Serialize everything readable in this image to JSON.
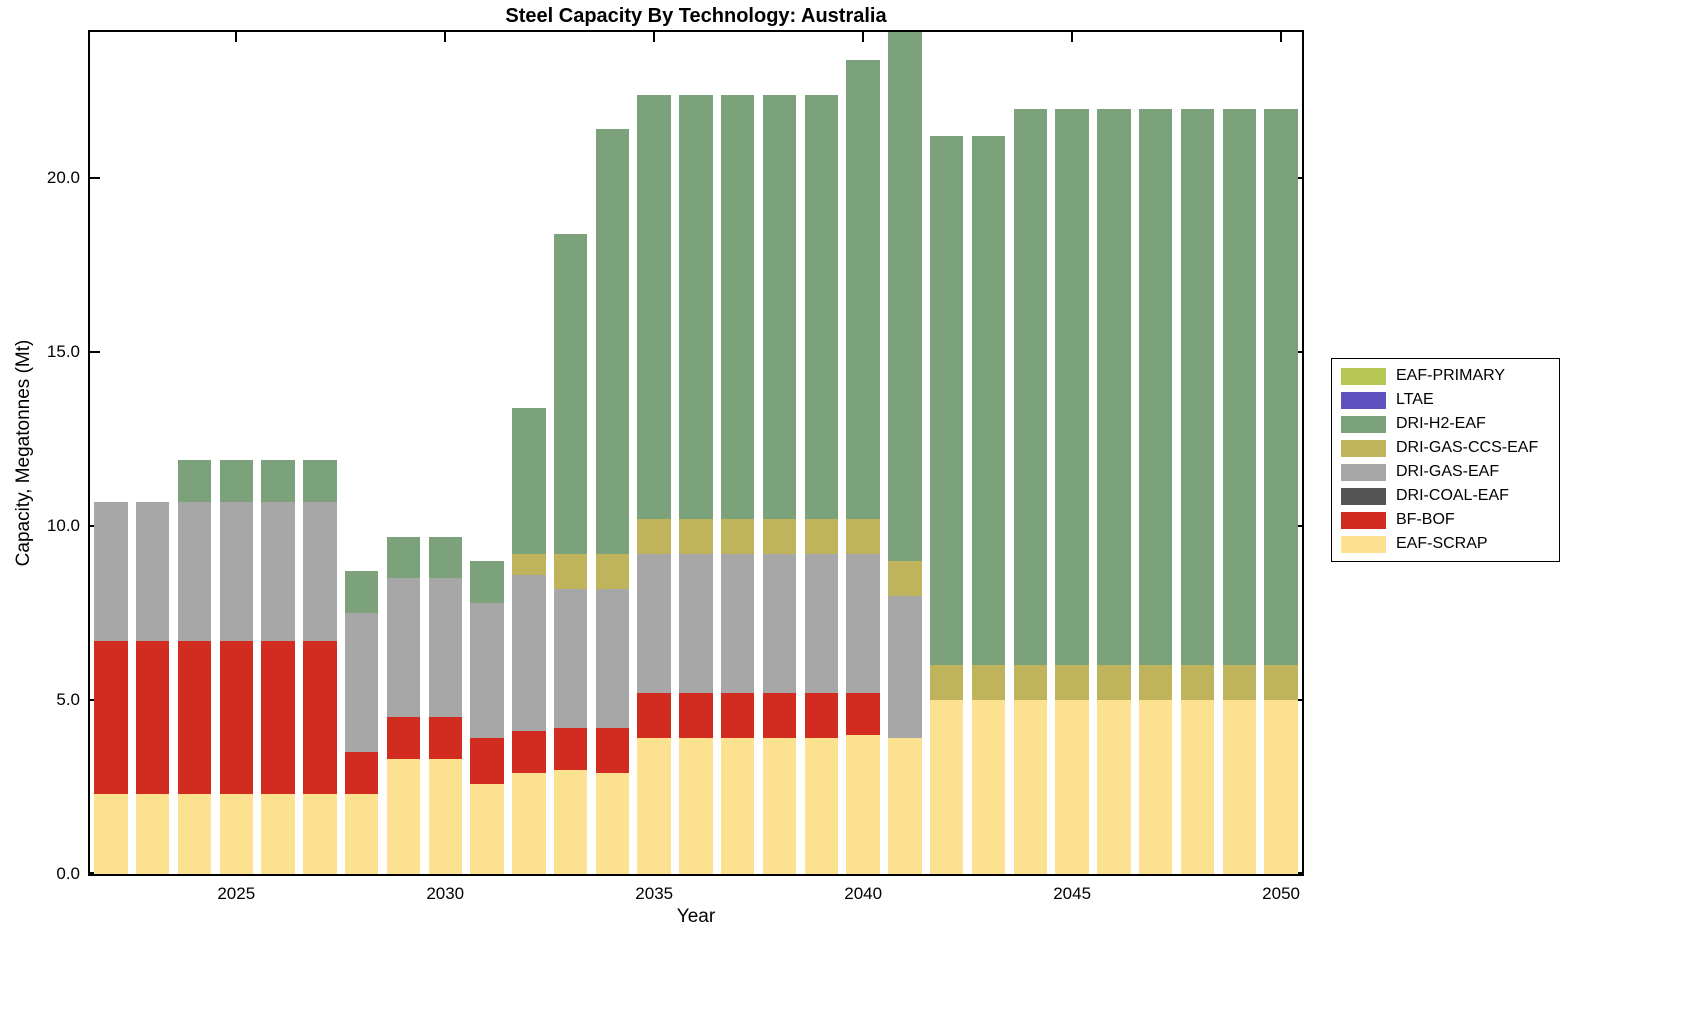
{
  "chart_data": {
    "type": "bar",
    "stacked": true,
    "title": "Steel Capacity By Technology: Australia",
    "xlabel": "Year",
    "ylabel": "Capacity, Megatonnes (Mt)",
    "grid": false,
    "legend_position": "right-outside",
    "ylim": [
      0,
      24.2
    ],
    "yticks": [
      0,
      5,
      10,
      15,
      20
    ],
    "ytick_labels": [
      "0.0",
      "5.0",
      "10.0",
      "15.0",
      "20.0"
    ],
    "xticks": [
      2025,
      2030,
      2035,
      2040,
      2045,
      2050
    ],
    "x": [
      2022,
      2023,
      2024,
      2025,
      2026,
      2027,
      2028,
      2029,
      2030,
      2031,
      2032,
      2033,
      2034,
      2035,
      2036,
      2037,
      2038,
      2039,
      2040,
      2041,
      2042,
      2043,
      2044,
      2045,
      2046,
      2047,
      2048,
      2049,
      2050
    ],
    "bar_width_fraction": 0.8,
    "legend_order_top_to_bottom": [
      "EAF-PRIMARY",
      "LTAE",
      "DRI-H2-EAF",
      "DRI-GAS-CCS-EAF",
      "DRI-GAS-EAF",
      "DRI-COAL-EAF",
      "BF-BOF",
      "EAF-SCRAP"
    ],
    "series": [
      {
        "name": "EAF-SCRAP",
        "color": "#FBE190",
        "values": [
          2.3,
          2.3,
          2.3,
          2.3,
          2.3,
          2.3,
          2.3,
          3.3,
          3.3,
          2.6,
          2.9,
          3.0,
          2.9,
          3.9,
          3.9,
          3.9,
          3.9,
          3.9,
          4.0,
          3.9,
          5.0,
          5.0,
          5.0,
          5.0,
          5.0,
          5.0,
          5.0,
          5.0,
          5.0
        ]
      },
      {
        "name": "BF-BOF",
        "color": "#D22B20",
        "values": [
          4.4,
          4.4,
          4.4,
          4.4,
          4.4,
          4.4,
          1.2,
          1.2,
          1.2,
          1.3,
          1.2,
          1.2,
          1.3,
          1.3,
          1.3,
          1.3,
          1.3,
          1.3,
          1.2,
          0,
          0,
          0,
          0,
          0,
          0,
          0,
          0,
          0,
          0
        ]
      },
      {
        "name": "DRI-COAL-EAF",
        "color": "#555555",
        "values": [
          0,
          0,
          0,
          0,
          0,
          0,
          0,
          0,
          0,
          0,
          0,
          0,
          0,
          0,
          0,
          0,
          0,
          0,
          0,
          0,
          0,
          0,
          0,
          0,
          0,
          0,
          0,
          0,
          0
        ]
      },
      {
        "name": "DRI-GAS-EAF",
        "color": "#A7A7A7",
        "values": [
          4.0,
          4.0,
          4.0,
          4.0,
          4.0,
          4.0,
          4.0,
          4.0,
          4.0,
          3.9,
          4.5,
          4.0,
          4.0,
          4.0,
          4.0,
          4.0,
          4.0,
          4.0,
          4.0,
          4.1,
          0,
          0,
          0,
          0,
          0,
          0,
          0,
          0,
          0
        ]
      },
      {
        "name": "DRI-GAS-CCS-EAF",
        "color": "#BFB35C",
        "values": [
          0,
          0,
          0,
          0,
          0,
          0,
          0,
          0,
          0,
          0,
          0.6,
          1.0,
          1.0,
          1.0,
          1.0,
          1.0,
          1.0,
          1.0,
          1.0,
          1.0,
          1.0,
          1.0,
          1.0,
          1.0,
          1.0,
          1.0,
          1.0,
          1.0,
          1.0
        ]
      },
      {
        "name": "DRI-H2-EAF",
        "color": "#7BA27A",
        "values": [
          0,
          0,
          1.2,
          1.2,
          1.2,
          1.2,
          1.2,
          1.2,
          1.2,
          1.2,
          4.2,
          9.2,
          12.2,
          12.2,
          12.2,
          12.2,
          12.2,
          12.2,
          13.2,
          15.5,
          15.2,
          15.2,
          16.0,
          16.0,
          16.0,
          16.0,
          16.0,
          16.0,
          16.0
        ]
      },
      {
        "name": "LTAE",
        "color": "#5F52BE",
        "values": [
          0,
          0,
          0,
          0,
          0,
          0,
          0,
          0,
          0,
          0,
          0,
          0,
          0,
          0,
          0,
          0,
          0,
          0,
          0,
          0,
          0,
          0,
          0,
          0,
          0,
          0,
          0,
          0,
          0
        ]
      },
      {
        "name": "EAF-PRIMARY",
        "color": "#B5C653",
        "values": [
          0,
          0,
          0,
          0,
          0,
          0,
          0,
          0,
          0,
          0,
          0,
          0,
          0,
          0,
          0,
          0,
          0,
          0,
          0,
          0,
          0,
          0,
          0,
          0,
          0,
          0,
          0,
          0,
          0
        ]
      }
    ]
  }
}
